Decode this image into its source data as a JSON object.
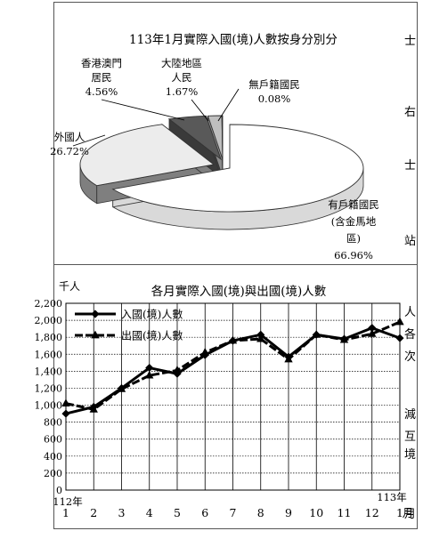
{
  "side_text": [
    "士",
    "右",
    "士",
    "站",
    "人",
    "各",
    "次",
    "減",
    "互",
    "境",
    "月"
  ],
  "pie_chart": {
    "type": "pie",
    "title": "113年1月實際入國(境)人數按身分別分",
    "slices": [
      {
        "label_lines": [
          "有戶籍國民",
          "(含金馬地",
          "區)"
        ],
        "percent_label": "66.96%",
        "value": 66.96,
        "color": "#ffffff"
      },
      {
        "label_lines": [
          "外國人"
        ],
        "percent_label": "26.72%",
        "value": 26.72,
        "color": "#ececec"
      },
      {
        "label_lines": [
          "香港澳門",
          "居民"
        ],
        "percent_label": "4.56%",
        "value": 4.56,
        "color": "#595959"
      },
      {
        "label_lines": [
          "大陸地區",
          "人民"
        ],
        "percent_label": "1.67%",
        "value": 1.67,
        "color": "#bfbfbf"
      },
      {
        "label_lines": [
          "無戶籍國民"
        ],
        "percent_label": "0.08%",
        "value": 0.08,
        "color": "#000000"
      }
    ]
  },
  "chart_data": {
    "type": "line",
    "title": "各月實際入國(境)與出國(境)人數",
    "ylabel": "千人",
    "x_unit": "月",
    "x_start_year": "112年",
    "x_end_year": "113年",
    "categories": [
      "1",
      "2",
      "3",
      "4",
      "5",
      "6",
      "7",
      "8",
      "9",
      "10",
      "11",
      "12",
      "1"
    ],
    "ylim": [
      0,
      2200
    ],
    "yticks": [
      "0",
      "200",
      "400",
      "600",
      "800",
      "1,000",
      "1,200",
      "1,400",
      "1,600",
      "1,800",
      "2,000",
      "2,200"
    ],
    "legend_position": "top-left",
    "series": [
      {
        "name": "入國(境)人數",
        "marker": "diamond",
        "values": [
          900,
          980,
          1200,
          1440,
          1370,
          1590,
          1760,
          1830,
          1570,
          1830,
          1780,
          1910,
          1790
        ]
      },
      {
        "name": "出國(境)人數",
        "marker": "triangle",
        "dashed": true,
        "values": [
          1020,
          950,
          1190,
          1350,
          1410,
          1620,
          1760,
          1780,
          1540,
          1830,
          1770,
          1840,
          1980
        ]
      }
    ]
  }
}
